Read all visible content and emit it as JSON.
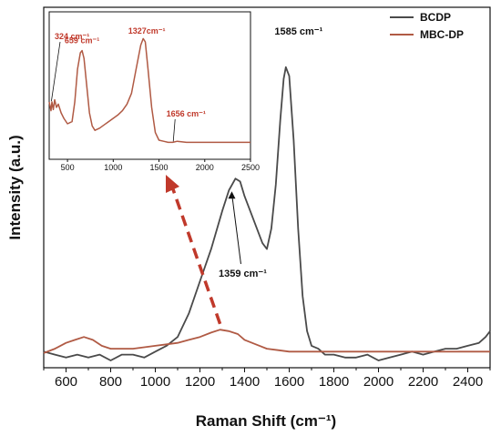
{
  "colors": {
    "BCDP": "#4a4a4a",
    "MBC-DP": "#b05a44",
    "arrow": "#c0392b",
    "inset_anno": "#c0392b",
    "main_anno": "#111111"
  },
  "chart_data": {
    "type": "line",
    "xlabel": "Raman Shift (cm⁻¹)",
    "ylabel": "Intensity (a.u.)",
    "xlim": [
      500,
      2500
    ],
    "ylim": [
      0,
      1.08
    ],
    "xticks": [
      600,
      800,
      1000,
      1200,
      1400,
      1600,
      1800,
      2000,
      2200,
      2400
    ],
    "yticks": [],
    "legend_position": "top-right",
    "series": [
      {
        "name": "BCDP",
        "color": "#4a4a4a",
        "x": [
          500,
          550,
          600,
          650,
          700,
          750,
          800,
          850,
          900,
          950,
          1000,
          1050,
          1100,
          1150,
          1200,
          1250,
          1300,
          1330,
          1359,
          1380,
          1400,
          1430,
          1460,
          1480,
          1500,
          1520,
          1540,
          1560,
          1575,
          1585,
          1600,
          1620,
          1640,
          1660,
          1680,
          1700,
          1730,
          1760,
          1800,
          1850,
          1900,
          1950,
          2000,
          2050,
          2100,
          2150,
          2200,
          2250,
          2300,
          2350,
          2400,
          2450,
          2480,
          2500
        ],
        "y": [
          0.03,
          0.02,
          0.01,
          0.02,
          0.01,
          0.02,
          0.0,
          0.02,
          0.02,
          0.01,
          0.03,
          0.05,
          0.08,
          0.16,
          0.27,
          0.38,
          0.51,
          0.58,
          0.62,
          0.61,
          0.56,
          0.5,
          0.44,
          0.4,
          0.38,
          0.45,
          0.6,
          0.82,
          0.96,
          1.0,
          0.97,
          0.75,
          0.45,
          0.22,
          0.1,
          0.05,
          0.04,
          0.02,
          0.02,
          0.01,
          0.01,
          0.02,
          0.0,
          0.01,
          0.02,
          0.03,
          0.02,
          0.03,
          0.04,
          0.04,
          0.05,
          0.06,
          0.08,
          0.1
        ]
      },
      {
        "name": "MBC-DP",
        "color": "#b05a44",
        "x": [
          500,
          550,
          600,
          640,
          680,
          720,
          760,
          800,
          850,
          900,
          950,
          1000,
          1050,
          1100,
          1150,
          1200,
          1250,
          1290,
          1330,
          1370,
          1400,
          1450,
          1500,
          1550,
          1600,
          1650,
          1700,
          1800,
          1900,
          2000,
          2100,
          2200,
          2300,
          2400,
          2500
        ],
        "y": [
          0.025,
          0.04,
          0.06,
          0.07,
          0.08,
          0.07,
          0.05,
          0.04,
          0.04,
          0.04,
          0.045,
          0.05,
          0.055,
          0.06,
          0.07,
          0.08,
          0.095,
          0.105,
          0.1,
          0.09,
          0.07,
          0.055,
          0.04,
          0.035,
          0.03,
          0.03,
          0.03,
          0.03,
          0.03,
          0.03,
          0.03,
          0.03,
          0.03,
          0.03,
          0.03
        ]
      }
    ],
    "annotations": [
      {
        "text": "1585 cm⁻¹",
        "x": 1585,
        "y": 1.07
      },
      {
        "text": "1359 cm⁻¹",
        "x": 1359,
        "y": 0.62
      }
    ],
    "inset": {
      "type": "line",
      "xlim": [
        300,
        2500
      ],
      "ylim": [
        0,
        1.1
      ],
      "xticks": [
        500,
        1000,
        1500,
        2000,
        2500
      ],
      "series": [
        {
          "name": "MBC-DP",
          "color": "#b05a44",
          "x": [
            300,
            320,
            330,
            345,
            360,
            380,
            400,
            430,
            460,
            500,
            550,
            580,
            610,
            640,
            659,
            680,
            710,
            740,
            770,
            800,
            850,
            900,
            950,
            1000,
            1050,
            1100,
            1150,
            1200,
            1250,
            1300,
            1327,
            1350,
            1380,
            1420,
            1460,
            1500,
            1550,
            1600,
            1650,
            1700,
            1800,
            1900,
            2000,
            2100,
            2200,
            2300,
            2400,
            2500
          ],
          "y": [
            0.4,
            0.32,
            0.4,
            0.33,
            0.42,
            0.35,
            0.38,
            0.3,
            0.25,
            0.2,
            0.22,
            0.4,
            0.7,
            0.85,
            0.87,
            0.8,
            0.55,
            0.3,
            0.18,
            0.14,
            0.16,
            0.19,
            0.22,
            0.25,
            0.28,
            0.32,
            0.38,
            0.48,
            0.7,
            0.92,
            0.98,
            0.95,
            0.7,
            0.35,
            0.12,
            0.05,
            0.04,
            0.03,
            0.03,
            0.04,
            0.03,
            0.03,
            0.03,
            0.03,
            0.03,
            0.03,
            0.03,
            0.03
          ]
        }
      ],
      "annotations": [
        {
          "text": "324 cm⁻¹",
          "x": 324,
          "y": 0.39
        },
        {
          "text": "659 cm⁻¹",
          "x": 659,
          "y": 0.87
        },
        {
          "text": "1327cm⁻¹",
          "x": 1327,
          "y": 0.98
        },
        {
          "text": "1656 cm⁻¹",
          "x": 1656,
          "y": 0.03
        }
      ]
    }
  }
}
